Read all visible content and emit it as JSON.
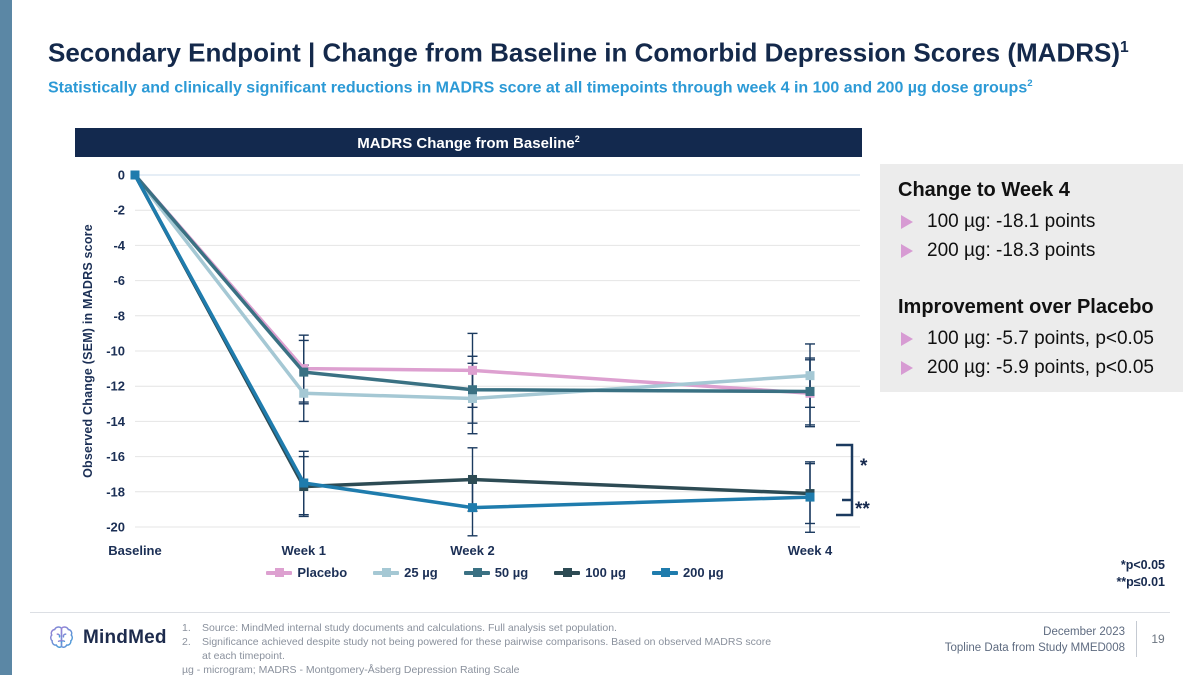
{
  "slide": {
    "accent_bar_color": "#5b87a5"
  },
  "header": {
    "title": "Secondary Endpoint | Change from Baseline in Comorbid Depression Scores (MADRS)",
    "title_sup": "1",
    "subtitle": "Statistically and clinically significant reductions in MADRS score at all timepoints through week 4 in 100 and 200 µg dose groups",
    "subtitle_sup": "2"
  },
  "chart": {
    "title": "MADRS Change from Baseline",
    "title_sup": "2"
  },
  "chart_data": {
    "type": "line",
    "title": "MADRS Change from Baseline",
    "ylabel": "Observed Change (SEM) in MADRS score",
    "categories": [
      "Baseline",
      "Week 1",
      "Week 2",
      "Week 4"
    ],
    "x_weeks": [
      0,
      1,
      2,
      4
    ],
    "ylim": [
      -20,
      0
    ],
    "ytick_step": 2,
    "yticks": [
      0,
      -2,
      -4,
      -6,
      -8,
      -10,
      -12,
      -14,
      -16,
      -18,
      -20
    ],
    "grid": true,
    "legend_position": "bottom",
    "error_bar_color": "#1b3a5f",
    "gridline_color": "#e4e4e4",
    "zero_line_color": "#ccdcec",
    "series": [
      {
        "name": "Placebo",
        "color": "#dda0d0",
        "values": [
          0,
          -11.0,
          -11.1,
          -12.4
        ],
        "sem": [
          0,
          1.9,
          2.1,
          1.9
        ]
      },
      {
        "name": "25 µg",
        "color": "#a5c8d4",
        "values": [
          0,
          -12.4,
          -12.7,
          -11.4
        ],
        "sem": [
          0,
          1.6,
          2.0,
          1.8
        ]
      },
      {
        "name": "50 µg",
        "color": "#3a7183",
        "values": [
          0,
          -11.2,
          -12.2,
          -12.3
        ],
        "sem": [
          0,
          1.8,
          1.9,
          1.9
        ]
      },
      {
        "name": "100 µg",
        "color": "#2d4b54",
        "values": [
          0,
          -17.7,
          -17.3,
          -18.1
        ],
        "sem": [
          0,
          1.7,
          1.8,
          1.7
        ]
      },
      {
        "name": "200 µg",
        "color": "#1f7cad",
        "values": [
          0,
          -17.5,
          -18.9,
          -18.3
        ],
        "sem": [
          0,
          1.8,
          1.6,
          2.0
        ]
      }
    ],
    "annotations": {
      "bracket_star": "*",
      "bracket_double_star": "**"
    }
  },
  "callout_panel": {
    "background": "#ececec",
    "bullet_color": "#d79bd3",
    "sections": [
      {
        "heading": "Change to Week 4",
        "bullets": [
          "100 µg: -18.1 points",
          "200 µg: -18.3 points"
        ]
      },
      {
        "heading": "Improvement over Placebo",
        "bullets": [
          "100 µg: -5.7 points, p<0.05",
          "200 µg: -5.9 points, p<0.05"
        ]
      }
    ]
  },
  "significance_note": {
    "line1": "*p<0.05",
    "line2": "**p≤0.01"
  },
  "footer": {
    "logo_text": "MindMed",
    "footnotes": [
      {
        "num": "1.",
        "text": "Source: MindMed internal study documents and calculations. Full analysis set population."
      },
      {
        "num": "2.",
        "text": "Significance achieved despite study not being powered for these pairwise comparisons. Based on observed MADRS score at each timepoint."
      }
    ],
    "abbreviations": "µg - microgram; MADRS - Montgomery-Åsberg Depression Rating Scale",
    "date": "December 2023",
    "study": "Topline Data from Study MMED008",
    "page_number": "19"
  }
}
